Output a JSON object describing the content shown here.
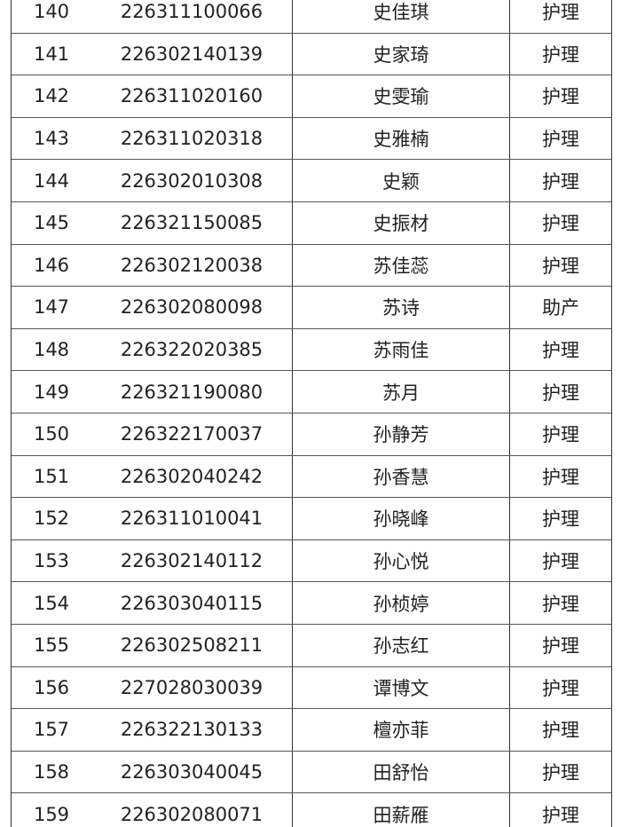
{
  "table": {
    "rows": [
      [
        "140",
        "226311100066",
        "史佳琪",
        "护理"
      ],
      [
        "141",
        "226302140139",
        "史家琦",
        "护理"
      ],
      [
        "142",
        "226311020160",
        "史雯瑜",
        "护理"
      ],
      [
        "143",
        "226311020318",
        "史雅楠",
        "护理"
      ],
      [
        "144",
        "226302010308",
        "史颖",
        "护理"
      ],
      [
        "145",
        "226321150085",
        "史振材",
        "护理"
      ],
      [
        "146",
        "226302120038",
        "苏佳蕊",
        "护理"
      ],
      [
        "147",
        "226302080098",
        "苏诗",
        "助产"
      ],
      [
        "148",
        "226322020385",
        "苏雨佳",
        "护理"
      ],
      [
        "149",
        "226321190080",
        "苏月",
        "护理"
      ],
      [
        "150",
        "226322170037",
        "孙静芳",
        "护理"
      ],
      [
        "151",
        "226302040242",
        "孙香慧",
        "护理"
      ],
      [
        "152",
        "226311010041",
        "孙晓峰",
        "护理"
      ],
      [
        "153",
        "226302140112",
        "孙心悦",
        "护理"
      ],
      [
        "154",
        "226303040115",
        "孙桢婷",
        "护理"
      ],
      [
        "155",
        "226302508211",
        "孙志红",
        "护理"
      ],
      [
        "156",
        "227028030039",
        "谭博文",
        "护理"
      ],
      [
        "157",
        "226322130133",
        "檀亦菲",
        "护理"
      ],
      [
        "158",
        "226303040045",
        "田舒怡",
        "护理"
      ],
      [
        "159",
        "226302080071",
        "田薪雁",
        "护理"
      ]
    ]
  }
}
